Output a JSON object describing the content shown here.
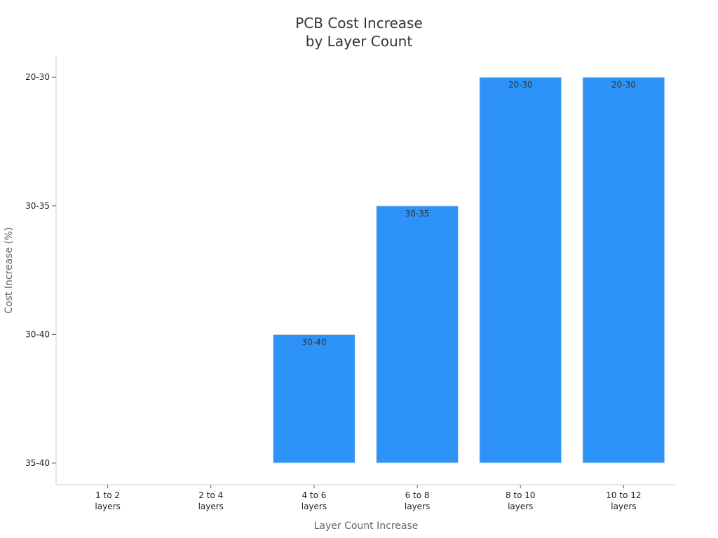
{
  "chart_data": {
    "type": "bar",
    "title_lines": [
      "PCB Cost Increase",
      "by Layer Count"
    ],
    "xlabel": "Layer Count Increase",
    "ylabel": "Cost Increase (%)",
    "categories": [
      [
        "1 to 2",
        "layers"
      ],
      [
        "2 to 4",
        "layers"
      ],
      [
        "4 to 6",
        "layers"
      ],
      [
        "6 to 8",
        "layers"
      ],
      [
        "8 to 10",
        "layers"
      ],
      [
        "10 to 12",
        "layers"
      ]
    ],
    "y_categories": [
      "35-40",
      "30-40",
      "30-35",
      "20-30"
    ],
    "y_tick_labels_top_to_bottom": [
      "20-30",
      "30-35",
      "30-40",
      "35-40"
    ],
    "values": [
      null,
      null,
      "30-40",
      "30-35",
      "20-30",
      "20-30"
    ],
    "data_labels": [
      "",
      "",
      "30-40",
      "30-35",
      "20-30",
      "20-30"
    ],
    "bar_color": "#2E93F8",
    "grid": false,
    "legend": "none"
  }
}
